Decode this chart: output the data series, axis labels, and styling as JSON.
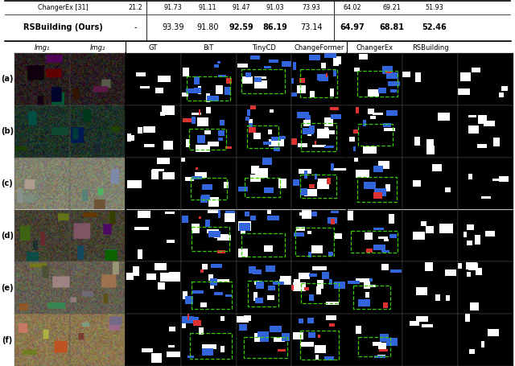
{
  "table_row1_label": "ChangerEx [31]",
  "table_row1_col0": "21.2",
  "table_row1_vals": [
    "91.73",
    "91.11",
    "91.47",
    "91.03",
    "73.93",
    "64.02",
    "69.21",
    "51.93"
  ],
  "table_row2_label": "RSBuilding (Ours)",
  "table_row2_col0": "-",
  "table_row2_vals": [
    "93.39",
    "91.80",
    "92.59",
    "86.19",
    "73.14",
    "64.97",
    "68.81",
    "52.46"
  ],
  "table_row2_bold": [
    false,
    false,
    true,
    true,
    false,
    true,
    true,
    true
  ],
  "col_headers": [
    "Img₁",
    "Img₂",
    "GT",
    "BiT",
    "TinyCD",
    "ChangeFormer",
    "ChangerEx",
    "RSBuilding"
  ],
  "row_labels": [
    "(a)",
    "(b)",
    "(c)",
    "(d)",
    "(e)",
    "(f)"
  ],
  "n_rows": 6,
  "n_img_cols": 9,
  "bg_color": "#ffffff"
}
